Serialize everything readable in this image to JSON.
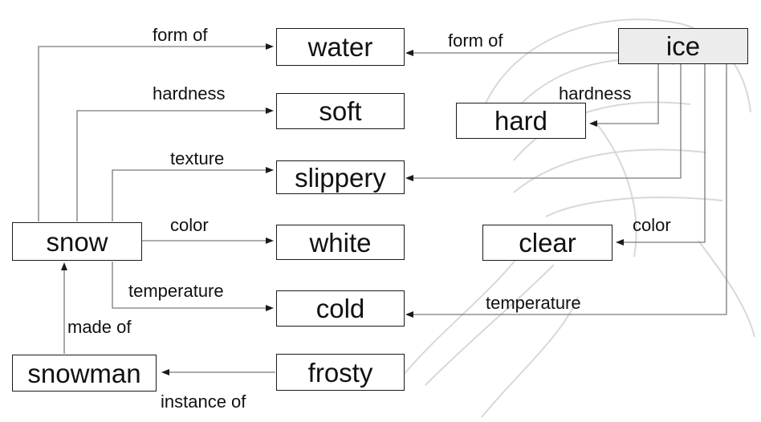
{
  "nodes": {
    "water": "water",
    "soft": "soft",
    "slippery": "slippery",
    "white": "white",
    "cold": "cold",
    "frosty": "frosty",
    "snow": "snow",
    "snowman": "snowman",
    "ice": "ice",
    "hard": "hard",
    "clear": "clear"
  },
  "edges": {
    "snow_form_of": "form of",
    "snow_hardness": "hardness",
    "snow_texture": "texture",
    "snow_color": "color",
    "snow_temperature": "temperature",
    "snowman_made_of": "made of",
    "frosty_instance_of": "instance of",
    "ice_form_of": "form of",
    "ice_hardness": "hardness",
    "ice_color": "color",
    "ice_temperature": "temperature"
  },
  "colors": {
    "line": "#7a7a7a",
    "box_border": "#1a1a1a",
    "text": "#111111",
    "watermark": "#d8d8d8"
  }
}
